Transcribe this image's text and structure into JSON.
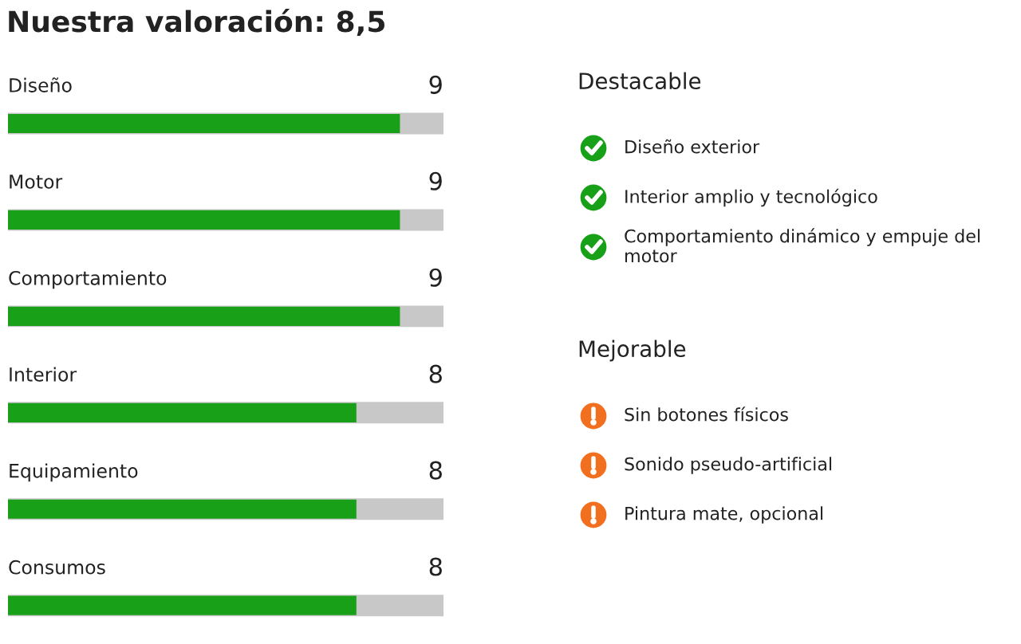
{
  "chart_data": [
    {
      "type": "bar",
      "orientation": "horizontal",
      "title": "Nuestra valoración: 8,5",
      "categories": [
        "Diseño",
        "Motor",
        "Comportamiento",
        "Interior",
        "Equipamiento",
        "Consumos"
      ],
      "values": [
        9,
        9,
        9,
        8,
        8,
        8
      ],
      "color": "#18a018",
      "xlim": [
        0,
        10
      ],
      "data_labels": true
    },
    {
      "type": "other",
      "title": "Destacable",
      "color": "#18a018",
      "annotations": [
        "Diseño exterior",
        "Interior amplio y tecnológico",
        "Comportamiento dinámico y empuje del motor"
      ]
    },
    {
      "type": "other",
      "title": "Mejorable",
      "color": "#f07020",
      "annotations": [
        "Sin botones físicos",
        "Sonido pseudo-artificial",
        "Pintura mate, opcional"
      ]
    }
  ]
}
